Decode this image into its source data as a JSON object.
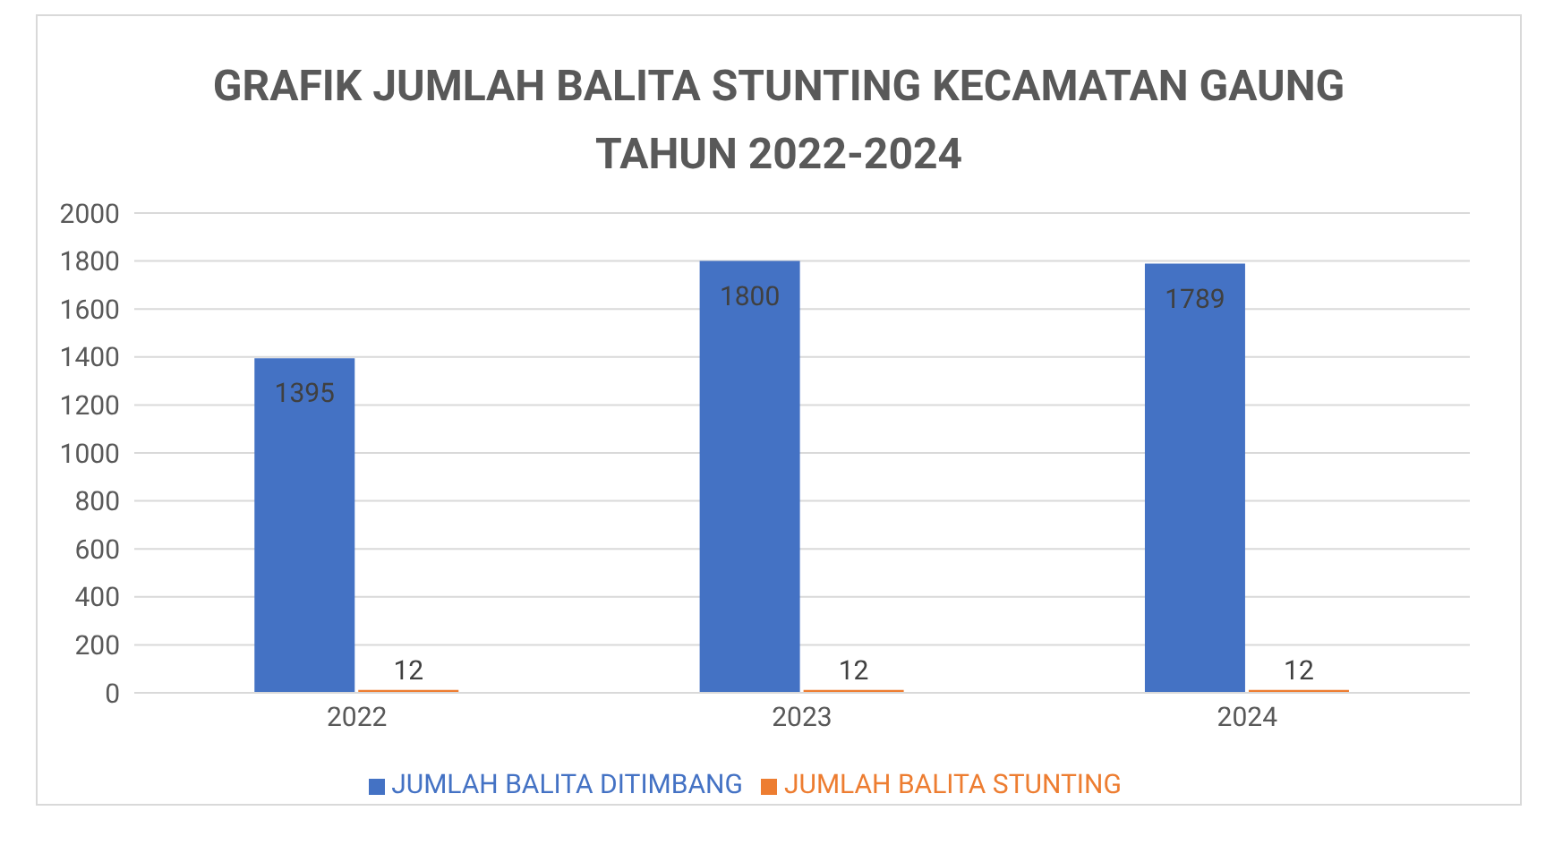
{
  "chart_data": {
    "type": "bar",
    "title": "GRAFIK JUMLAH BALITA STUNTING KECAMATAN GAUNG TAHUN 2022-2024",
    "categories": [
      "2022",
      "2023",
      "2024"
    ],
    "series": [
      {
        "name": "JUMLAH BALITA DITIMBANG",
        "color": "#4472c4",
        "values": [
          1395,
          1800,
          1789
        ]
      },
      {
        "name": "JUMLAH BALITA STUNTING",
        "color": "#ed7d31",
        "values": [
          12,
          12,
          12
        ]
      }
    ],
    "ylim": [
      0,
      2000
    ],
    "yticks": [
      0,
      200,
      400,
      600,
      800,
      1000,
      1200,
      1400,
      1600,
      1800,
      2000
    ],
    "grid": "y",
    "legend": "bottom",
    "data_labels": true
  }
}
